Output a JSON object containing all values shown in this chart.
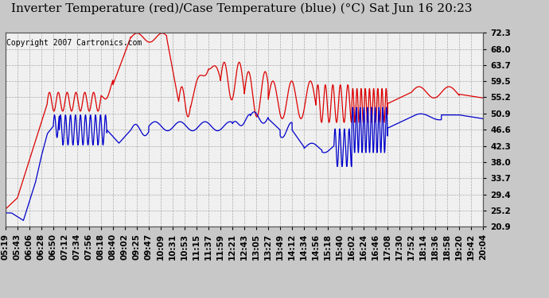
{
  "title": "Inverter Temperature (red)/Case Temperature (blue) (°C) Sat Jun 16 20:23",
  "copyright": "Copyright 2007 Cartronics.com",
  "outer_bg": "#c8c8c8",
  "plot_bg_color": "#f0f0f0",
  "grid_color": "#aaaaaa",
  "red_color": "#dd0000",
  "blue_color": "#0000cc",
  "yticks": [
    20.9,
    25.2,
    29.4,
    33.7,
    38.0,
    42.3,
    46.6,
    50.9,
    55.2,
    59.5,
    63.7,
    68.0,
    72.3
  ],
  "xtick_labels": [
    "05:19",
    "05:43",
    "06:06",
    "06:28",
    "06:50",
    "07:12",
    "07:34",
    "07:56",
    "08:18",
    "08:40",
    "09:02",
    "09:25",
    "09:47",
    "10:09",
    "10:31",
    "10:53",
    "11:15",
    "11:37",
    "11:59",
    "12:21",
    "12:43",
    "13:05",
    "13:27",
    "13:49",
    "14:12",
    "14:34",
    "14:56",
    "15:18",
    "15:40",
    "16:02",
    "16:24",
    "16:46",
    "17:08",
    "17:30",
    "17:52",
    "18:14",
    "18:36",
    "18:58",
    "19:20",
    "19:42",
    "20:04"
  ],
  "ylim": [
    20.9,
    72.3
  ],
  "title_fontsize": 11,
  "tick_fontsize": 7.5,
  "copyright_fontsize": 7
}
